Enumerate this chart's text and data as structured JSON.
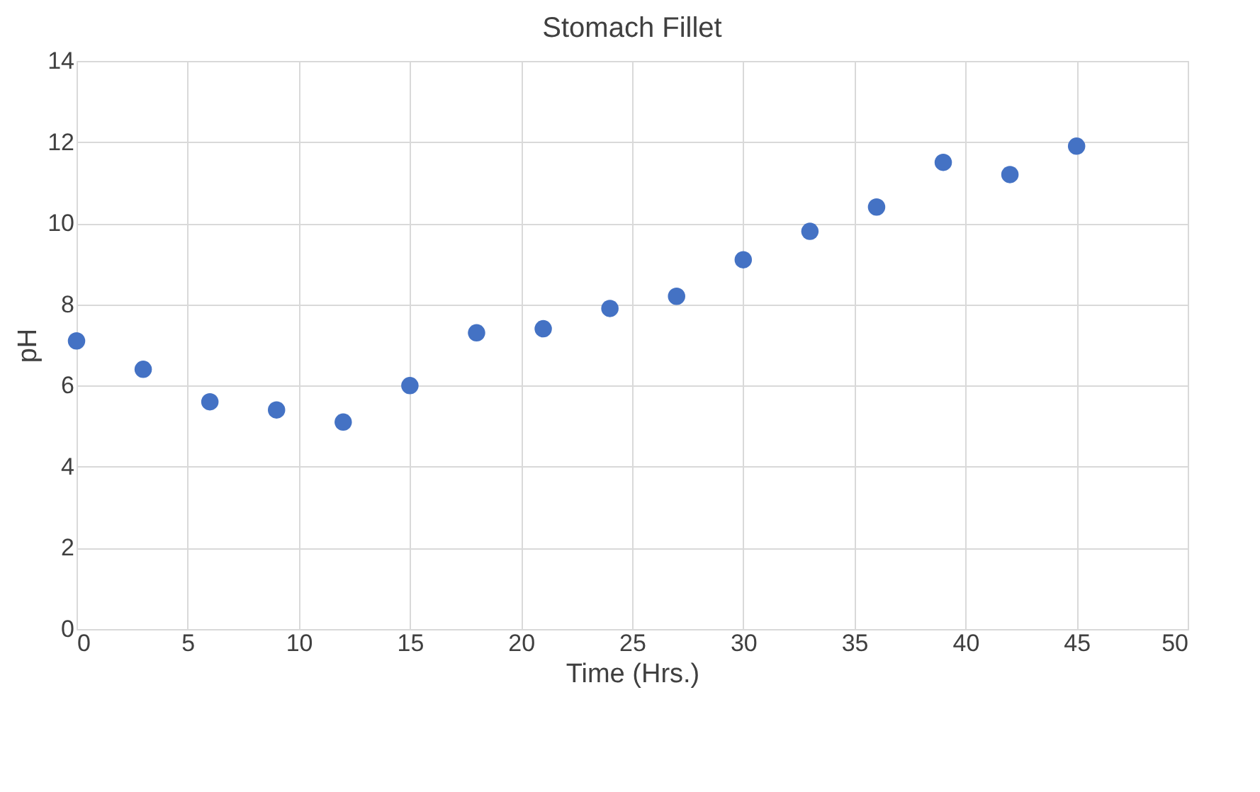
{
  "chart_data": {
    "type": "scatter",
    "title": "Stomach Fillet",
    "xlabel": "Time (Hrs.)",
    "ylabel": "pH",
    "x": [
      0,
      3,
      6,
      9,
      12,
      15,
      18,
      21,
      24,
      27,
      30,
      33,
      36,
      39,
      42,
      45
    ],
    "series": [
      {
        "color": "#4472c4",
        "values": [
          7.1,
          6.4,
          5.6,
          5.4,
          5.1,
          6.0,
          7.3,
          7.4,
          7.9,
          8.2,
          9.1,
          9.8,
          10.4,
          11.5,
          11.2,
          11.9
        ]
      }
    ],
    "xlim": [
      0,
      50
    ],
    "xticks": [
      0,
      5,
      10,
      15,
      20,
      25,
      30,
      35,
      40,
      45,
      50
    ],
    "ylim": [
      0,
      14
    ],
    "yticks": [
      0,
      2,
      4,
      6,
      8,
      10,
      12,
      14
    ],
    "grid": true,
    "marker": "circle"
  }
}
